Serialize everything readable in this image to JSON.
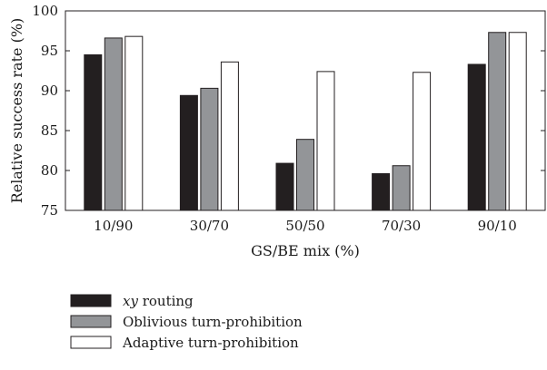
{
  "chart_data": {
    "type": "bar",
    "title": "",
    "xlabel": "GS/BE mix (%)",
    "ylabel": "Relative success rate (%)",
    "ylim": [
      75,
      100
    ],
    "yticks": [
      75,
      80,
      85,
      90,
      95,
      100
    ],
    "categories": [
      "10/90",
      "30/70",
      "50/50",
      "70/30",
      "90/10"
    ],
    "series": [
      {
        "name_italic": "xy",
        "name_rest": " routing",
        "color": "#231f20",
        "values": [
          94.5,
          89.4,
          80.9,
          79.6,
          93.3
        ]
      },
      {
        "name": "Oblivious turn-prohibition",
        "color": "#939598",
        "values": [
          96.6,
          90.3,
          83.9,
          80.6,
          97.3
        ]
      },
      {
        "name": "Adaptive turn-prohibition",
        "color": "#ffffff",
        "values": [
          96.8,
          93.6,
          92.4,
          92.3,
          97.3
        ]
      }
    ],
    "grid": false,
    "legend_position": "bottom-left"
  }
}
